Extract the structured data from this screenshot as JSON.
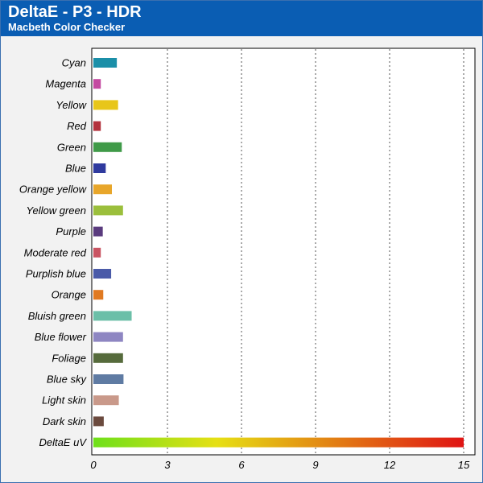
{
  "header": {
    "title": "DeltaE - P3 - HDR",
    "subtitle": "Macbeth Color Checker"
  },
  "colors": {
    "header_bg": "#0a5db3",
    "plot_bg": "#ffffff",
    "frame_bg": "#f2f2f2",
    "grid": "#555555"
  },
  "chart_data": {
    "type": "bar",
    "orientation": "horizontal",
    "title": "DeltaE - P3 - HDR",
    "subtitle": "Macbeth Color Checker",
    "xlim": [
      0,
      15
    ],
    "x_ticks": [
      0,
      3,
      6,
      9,
      12,
      15
    ],
    "grid": "vertical dotted",
    "categories": [
      "Cyan",
      "Magenta",
      "Yellow",
      "Red",
      "Green",
      "Blue",
      "Orange yellow",
      "Yellow green",
      "Purple",
      "Moderate red",
      "Purplish blue",
      "Orange",
      "Bluish green",
      "Blue flower",
      "Foliage",
      "Blue sky",
      "Light skin",
      "Dark skin",
      "DeltaE uV"
    ],
    "values": [
      0.95,
      0.3,
      1.0,
      0.3,
      1.15,
      0.5,
      0.75,
      1.2,
      0.38,
      0.3,
      0.72,
      0.4,
      1.55,
      1.2,
      1.2,
      1.22,
      1.03,
      0.42,
      15
    ],
    "bar_colors": [
      "#1b8fa8",
      "#c44aa1",
      "#e8c61a",
      "#b3323d",
      "#3f9a48",
      "#2f3a9e",
      "#e8a62a",
      "#9bbf3c",
      "#5a3b7e",
      "#c95462",
      "#4a5aa8",
      "#e07a22",
      "#6bbfa8",
      "#8e86c2",
      "#566b3c",
      "#5f7ba3",
      "#c9998a",
      "#6b4a3e",
      "gradient"
    ],
    "gradient_stops": [
      "#6ee01a",
      "#e6e014",
      "#e27a14",
      "#e01414"
    ]
  }
}
